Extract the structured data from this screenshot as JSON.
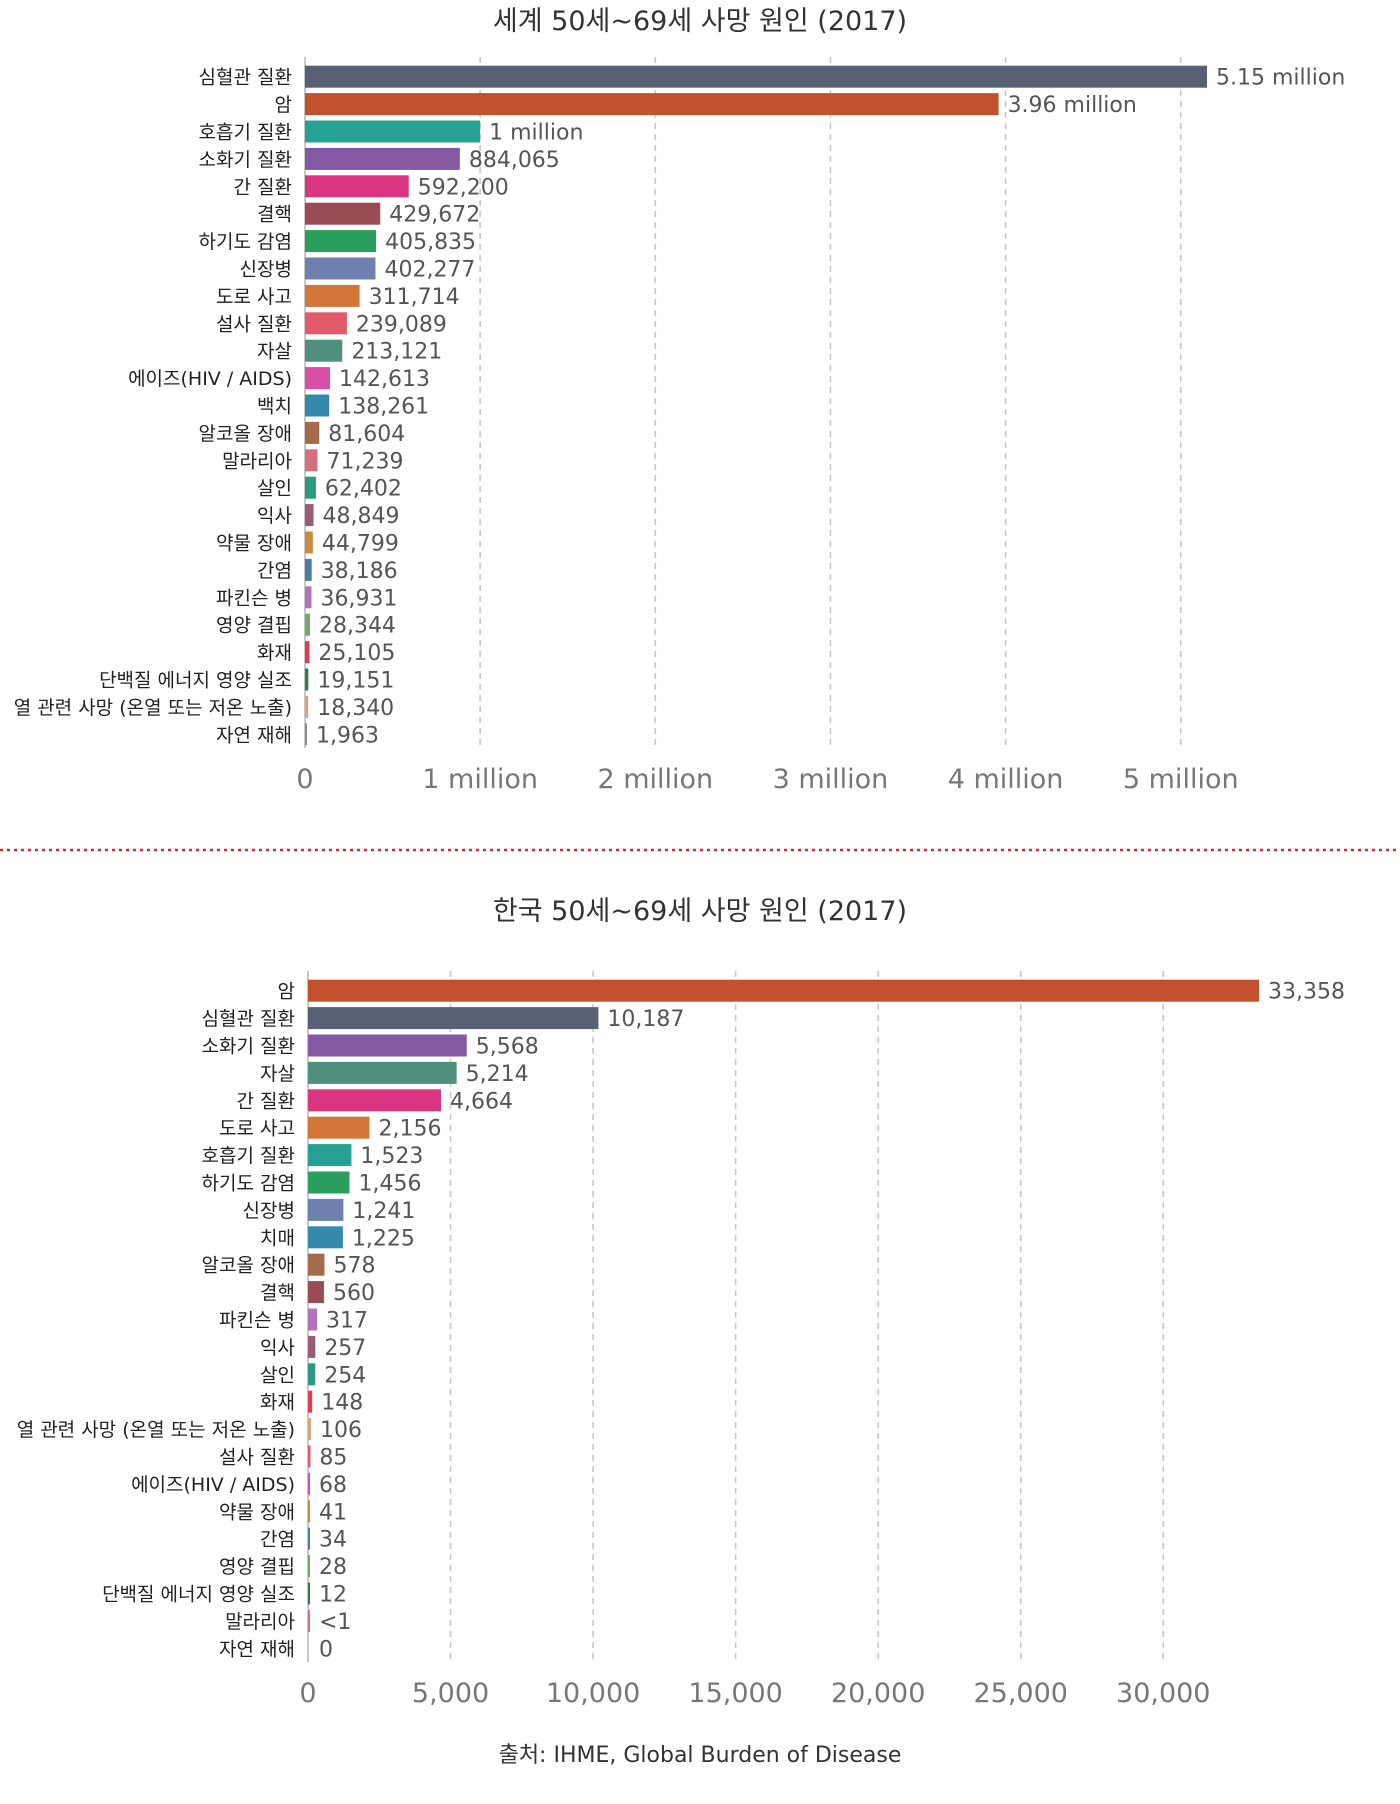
{
  "chart_data": [
    {
      "type": "bar",
      "orientation": "horizontal",
      "title": "세계 50세~69세 사망 원인 (2017)",
      "xlim": [
        0,
        5150000
      ],
      "ticks": [
        {
          "value": 0,
          "label": "0"
        },
        {
          "value": 1000000,
          "label": "1 million"
        },
        {
          "value": 2000000,
          "label": "2 million"
        },
        {
          "value": 3000000,
          "label": "3 million"
        },
        {
          "value": 4000000,
          "label": "4 million"
        },
        {
          "value": 5000000,
          "label": "5 million"
        }
      ],
      "grid": true,
      "bars": [
        {
          "category": "심혈관 질환",
          "value": 5150000,
          "label": "5.15 million",
          "color": "#576074"
        },
        {
          "category": "암",
          "value": 3960000,
          "label": "3.96 million",
          "color": "#c1522d"
        },
        {
          "category": "호흡기 질환",
          "value": 1000000,
          "label": "1 million",
          "color": "#28a195"
        },
        {
          "category": "소화기 질환",
          "value": 884065,
          "label": "884,065",
          "color": "#8558a3"
        },
        {
          "category": "간 질환",
          "value": 592200,
          "label": "592,200",
          "color": "#da3581"
        },
        {
          "category": "결핵",
          "value": 429672,
          "label": "429,672",
          "color": "#9b4b55"
        },
        {
          "category": "하기도 감염",
          "value": 405835,
          "label": "405,835",
          "color": "#2a9e5c"
        },
        {
          "category": "신장병",
          "value": 402277,
          "label": "402,277",
          "color": "#6e80ae"
        },
        {
          "category": "도로 사고",
          "value": 311714,
          "label": "311,714",
          "color": "#d2763a"
        },
        {
          "category": "설사 질환",
          "value": 239089,
          "label": "239,089",
          "color": "#e05a69"
        },
        {
          "category": "자살",
          "value": 213121,
          "label": "213,121",
          "color": "#4e8f7e"
        },
        {
          "category": "에이즈(HIV / AIDS)",
          "value": 142613,
          "label": "142,613",
          "color": "#d94fa7"
        },
        {
          "category": "백치",
          "value": 138261,
          "label": "138,261",
          "color": "#3589ac"
        },
        {
          "category": "알코올 장애",
          "value": 81604,
          "label": "81,604",
          "color": "#a56a49"
        },
        {
          "category": "말라리아",
          "value": 71239,
          "label": "71,239",
          "color": "#d3717c"
        },
        {
          "category": "살인",
          "value": 62402,
          "label": "62,402",
          "color": "#2b9a7d"
        },
        {
          "category": "익사",
          "value": 48849,
          "label": "48,849",
          "color": "#9b5a78"
        },
        {
          "category": "약물 장애",
          "value": 44799,
          "label": "44,799",
          "color": "#cc8a3f"
        },
        {
          "category": "간염",
          "value": 38186,
          "label": "38,186",
          "color": "#4f7ba6"
        },
        {
          "category": "파킨슨 병",
          "value": 36931,
          "label": "36,931",
          "color": "#b273b8"
        },
        {
          "category": "영양 결핍",
          "value": 28344,
          "label": "28,344",
          "color": "#79a46a"
        },
        {
          "category": "화재",
          "value": 25105,
          "label": "25,105",
          "color": "#e23a52"
        },
        {
          "category": "단백질 에너지 영양 실조",
          "value": 19151,
          "label": "19,151",
          "color": "#3a7a46"
        },
        {
          "category": "열 관련 사망 (온열 또는 저온 노출)",
          "value": 18340,
          "label": "18,340",
          "color": "#d1a683"
        },
        {
          "category": "자연 재해",
          "value": 1963,
          "label": "1,963",
          "color": "#8a8a8a"
        }
      ]
    },
    {
      "type": "bar",
      "orientation": "horizontal",
      "title": "한국  50세~69세 사망 원인 (2017)",
      "xlim": [
        0,
        33358
      ],
      "ticks": [
        {
          "value": 0,
          "label": "0"
        },
        {
          "value": 5000,
          "label": "5,000"
        },
        {
          "value": 10000,
          "label": "10,000"
        },
        {
          "value": 15000,
          "label": "15,000"
        },
        {
          "value": 20000,
          "label": "20,000"
        },
        {
          "value": 25000,
          "label": "25,000"
        },
        {
          "value": 30000,
          "label": "30,000"
        }
      ],
      "grid": true,
      "bars": [
        {
          "category": "암",
          "value": 33358,
          "label": "33,358",
          "color": "#c1522d"
        },
        {
          "category": "심혈관 질환",
          "value": 10187,
          "label": "10,187",
          "color": "#576074"
        },
        {
          "category": "소화기 질환",
          "value": 5568,
          "label": "5,568",
          "color": "#8558a3"
        },
        {
          "category": "자살",
          "value": 5214,
          "label": "5,214",
          "color": "#4e8f7e"
        },
        {
          "category": "간 질환",
          "value": 4664,
          "label": "4,664",
          "color": "#da3581"
        },
        {
          "category": "도로 사고",
          "value": 2156,
          "label": "2,156",
          "color": "#d2763a"
        },
        {
          "category": "호흡기 질환",
          "value": 1523,
          "label": "1,523",
          "color": "#28a195"
        },
        {
          "category": "하기도 감염",
          "value": 1456,
          "label": "1,456",
          "color": "#2a9e5c"
        },
        {
          "category": "신장병",
          "value": 1241,
          "label": "1,241",
          "color": "#6e80ae"
        },
        {
          "category": "치매",
          "value": 1225,
          "label": "1,225",
          "color": "#3589ac"
        },
        {
          "category": "알코올 장애",
          "value": 578,
          "label": "578",
          "color": "#a56a49"
        },
        {
          "category": "결핵",
          "value": 560,
          "label": "560",
          "color": "#9b4b55"
        },
        {
          "category": "파킨슨 병",
          "value": 317,
          "label": "317",
          "color": "#b273b8"
        },
        {
          "category": "익사",
          "value": 257,
          "label": "257",
          "color": "#9b5a78"
        },
        {
          "category": "살인",
          "value": 254,
          "label": "254",
          "color": "#2b9a7d"
        },
        {
          "category": "화재",
          "value": 148,
          "label": "148",
          "color": "#e23a52"
        },
        {
          "category": "열 관련 사망 (온열 또는 저온 노출)",
          "value": 106,
          "label": "106",
          "color": "#d1a683"
        },
        {
          "category": "설사 질환",
          "value": 85,
          "label": "85",
          "color": "#e05a69"
        },
        {
          "category": "에이즈(HIV / AIDS)",
          "value": 68,
          "label": "68",
          "color": "#d94fa7"
        },
        {
          "category": "약물 장애",
          "value": 41,
          "label": "41",
          "color": "#cc8a3f"
        },
        {
          "category": "간염",
          "value": 34,
          "label": "34",
          "color": "#4f7ba6"
        },
        {
          "category": "영양 결핍",
          "value": 28,
          "label": "28",
          "color": "#79a46a"
        },
        {
          "category": "단백질 에너지 영양 실조",
          "value": 12,
          "label": "12",
          "color": "#3a7a46"
        },
        {
          "category": "말라리아",
          "value": 0.5,
          "label": "<1",
          "color": "#d3717c"
        },
        {
          "category": "자연 재해",
          "value": 0,
          "label": "0",
          "color": "#8a8a8a"
        }
      ]
    }
  ],
  "footer": {
    "source": "출처: IHME, Global Burden of Disease"
  }
}
